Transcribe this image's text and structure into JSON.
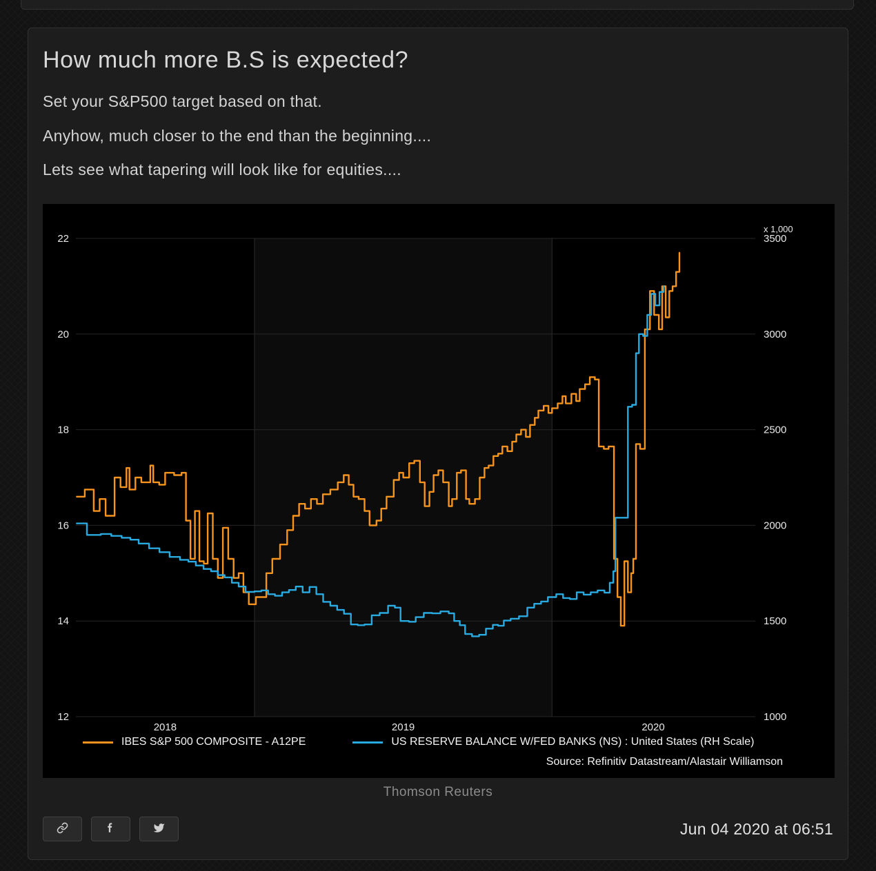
{
  "post": {
    "title": "How much more B.S is expected?",
    "paragraphs": [
      "Set your S&P500 target based on that.",
      "Anyhow, much closer to the end than the beginning....",
      "Lets see what tapering will look like for equities...."
    ],
    "caption": "Thomson Reuters",
    "timestamp": "Jun 04 2020 at 06:51"
  },
  "share": {
    "buttons": [
      {
        "name": "link"
      },
      {
        "name": "facebook"
      },
      {
        "name": "twitter"
      }
    ]
  },
  "chart_data": {
    "type": "line",
    "background": "#000000",
    "x_axis": {
      "range": [
        2018.4,
        2020.683
      ],
      "gridlines": [
        2019,
        2020
      ],
      "band": [
        2019,
        2020
      ],
      "labels": [
        {
          "text": "2018",
          "x": 2018.7
        },
        {
          "text": "2019",
          "x": 2019.5
        },
        {
          "text": "2020",
          "x": 2020.34
        }
      ]
    },
    "left_axis": {
      "range": [
        12,
        22
      ],
      "ticks": [
        22,
        20,
        18,
        16,
        14,
        12
      ]
    },
    "right_axis": {
      "range": [
        1000,
        3500
      ],
      "ticks": [
        3500,
        3000,
        2500,
        2000,
        1500,
        1000
      ],
      "unit_label": "x 1,000"
    },
    "legend": [
      {
        "label": "IBES S&P 500 COMPOSITE - A12PE",
        "color": "#f7941e"
      },
      {
        "label": "US RESERVE BALANCE W/FED BANKS (NS) : United States (RH Scale)",
        "color": "#29abe2"
      }
    ],
    "source": "Source: Refinitiv Datastream/Alastair Williamson",
    "series": [
      {
        "name": "IBES S&P 500 COMPOSITE - A12PE",
        "axis": "left",
        "color": "#f7941e",
        "step": true,
        "points": [
          [
            2018.403,
            16.6
          ],
          [
            2018.43,
            16.75
          ],
          [
            2018.46,
            16.3
          ],
          [
            2018.48,
            16.55
          ],
          [
            2018.5,
            16.2
          ],
          [
            2018.53,
            17.0
          ],
          [
            2018.55,
            16.8
          ],
          [
            2018.57,
            17.2
          ],
          [
            2018.58,
            16.75
          ],
          [
            2018.6,
            17.0
          ],
          [
            2018.62,
            16.9
          ],
          [
            2018.65,
            17.25
          ],
          [
            2018.66,
            16.9
          ],
          [
            2018.68,
            16.85
          ],
          [
            2018.7,
            17.1
          ],
          [
            2018.73,
            17.05
          ],
          [
            2018.755,
            17.1
          ],
          [
            2018.77,
            16.1
          ],
          [
            2018.785,
            15.3
          ],
          [
            2018.8,
            16.3
          ],
          [
            2018.815,
            15.25
          ],
          [
            2018.83,
            15.2
          ],
          [
            2018.843,
            16.25
          ],
          [
            2018.86,
            15.3
          ],
          [
            2018.877,
            14.9
          ],
          [
            2018.894,
            15.95
          ],
          [
            2018.912,
            15.3
          ],
          [
            2018.93,
            14.9
          ],
          [
            2018.947,
            15.0
          ],
          [
            2018.963,
            14.6
          ],
          [
            2018.981,
            14.35
          ],
          [
            2019.005,
            14.5
          ],
          [
            2019.04,
            15.0
          ],
          [
            2019.06,
            15.3
          ],
          [
            2019.086,
            15.6
          ],
          [
            2019.11,
            15.9
          ],
          [
            2019.13,
            16.2
          ],
          [
            2019.15,
            16.45
          ],
          [
            2019.17,
            16.35
          ],
          [
            2019.19,
            16.55
          ],
          [
            2019.21,
            16.45
          ],
          [
            2019.23,
            16.65
          ],
          [
            2019.255,
            16.75
          ],
          [
            2019.28,
            16.9
          ],
          [
            2019.3,
            17.05
          ],
          [
            2019.317,
            16.85
          ],
          [
            2019.333,
            16.6
          ],
          [
            2019.35,
            16.55
          ],
          [
            2019.37,
            16.3
          ],
          [
            2019.387,
            16.0
          ],
          [
            2019.41,
            16.1
          ],
          [
            2019.426,
            16.35
          ],
          [
            2019.444,
            16.6
          ],
          [
            2019.468,
            16.95
          ],
          [
            2019.486,
            17.1
          ],
          [
            2019.5,
            17.0
          ],
          [
            2019.52,
            17.3
          ],
          [
            2019.537,
            17.35
          ],
          [
            2019.556,
            16.9
          ],
          [
            2019.572,
            16.4
          ],
          [
            2019.588,
            16.7
          ],
          [
            2019.602,
            17.05
          ],
          [
            2019.618,
            17.15
          ],
          [
            2019.634,
            16.9
          ],
          [
            2019.653,
            16.4
          ],
          [
            2019.664,
            16.55
          ],
          [
            2019.68,
            17.1
          ],
          [
            2019.694,
            17.15
          ],
          [
            2019.711,
            16.55
          ],
          [
            2019.722,
            16.45
          ],
          [
            2019.741,
            16.55
          ],
          [
            2019.757,
            17.0
          ],
          [
            2019.773,
            17.2
          ],
          [
            2019.787,
            17.25
          ],
          [
            2019.803,
            17.45
          ],
          [
            2019.819,
            17.5
          ],
          [
            2019.833,
            17.65
          ],
          [
            2019.85,
            17.55
          ],
          [
            2019.866,
            17.75
          ],
          [
            2019.88,
            17.9
          ],
          [
            2019.896,
            18.0
          ],
          [
            2019.912,
            17.85
          ],
          [
            2019.926,
            18.1
          ],
          [
            2019.942,
            18.25
          ],
          [
            2019.954,
            18.4
          ],
          [
            2019.972,
            18.5
          ],
          [
            2019.988,
            18.35
          ],
          [
            2020.0,
            18.45
          ],
          [
            2020.019,
            18.55
          ],
          [
            2020.035,
            18.7
          ],
          [
            2020.046,
            18.55
          ],
          [
            2020.065,
            18.75
          ],
          [
            2020.081,
            18.6
          ],
          [
            2020.093,
            18.85
          ],
          [
            2020.111,
            18.95
          ],
          [
            2020.127,
            19.1
          ],
          [
            2020.144,
            19.05
          ],
          [
            2020.157,
            17.65
          ],
          [
            2020.174,
            17.6
          ],
          [
            2020.19,
            17.65
          ],
          [
            2020.208,
            15.3
          ],
          [
            2020.22,
            14.5
          ],
          [
            2020.231,
            13.9
          ],
          [
            2020.243,
            15.25
          ],
          [
            2020.255,
            14.6
          ],
          [
            2020.266,
            15.0
          ],
          [
            2020.273,
            15.3
          ],
          [
            2020.282,
            17.7
          ],
          [
            2020.296,
            17.6
          ],
          [
            2020.312,
            20.1
          ],
          [
            2020.329,
            20.9
          ],
          [
            2020.343,
            20.4
          ],
          [
            2020.359,
            20.1
          ],
          [
            2020.37,
            21.0
          ],
          [
            2020.382,
            20.35
          ],
          [
            2020.394,
            20.9
          ],
          [
            2020.405,
            21.0
          ],
          [
            2020.417,
            21.3
          ],
          [
            2020.428,
            21.7
          ]
        ]
      },
      {
        "name": "US RESERVE BALANCE W/FED BANKS (NS) : United States",
        "axis": "right",
        "color": "#29abe2",
        "step": true,
        "points": [
          [
            2018.403,
            2010
          ],
          [
            2018.437,
            1950
          ],
          [
            2018.484,
            1955
          ],
          [
            2018.519,
            1945
          ],
          [
            2018.554,
            1935
          ],
          [
            2018.583,
            1925
          ],
          [
            2018.611,
            1905
          ],
          [
            2018.646,
            1880
          ],
          [
            2018.681,
            1860
          ],
          [
            2018.715,
            1835
          ],
          [
            2018.75,
            1820
          ],
          [
            2018.778,
            1810
          ],
          [
            2018.803,
            1790
          ],
          [
            2018.829,
            1772
          ],
          [
            2018.854,
            1760
          ],
          [
            2018.877,
            1740
          ],
          [
            2018.9,
            1728
          ],
          [
            2018.924,
            1700
          ],
          [
            2018.947,
            1680
          ],
          [
            2018.97,
            1652
          ],
          [
            2019.0,
            1655
          ],
          [
            2019.023,
            1660
          ],
          [
            2019.046,
            1640
          ],
          [
            2019.069,
            1632
          ],
          [
            2019.093,
            1650
          ],
          [
            2019.116,
            1662
          ],
          [
            2019.139,
            1680
          ],
          [
            2019.162,
            1650
          ],
          [
            2019.185,
            1678
          ],
          [
            2019.208,
            1640
          ],
          [
            2019.231,
            1600
          ],
          [
            2019.255,
            1580
          ],
          [
            2019.278,
            1558
          ],
          [
            2019.301,
            1538
          ],
          [
            2019.324,
            1482
          ],
          [
            2019.347,
            1478
          ],
          [
            2019.37,
            1482
          ],
          [
            2019.394,
            1530
          ],
          [
            2019.421,
            1542
          ],
          [
            2019.449,
            1580
          ],
          [
            2019.472,
            1570
          ],
          [
            2019.491,
            1500
          ],
          [
            2019.519,
            1496
          ],
          [
            2019.542,
            1520
          ],
          [
            2019.569,
            1542
          ],
          [
            2019.597,
            1540
          ],
          [
            2019.625,
            1550
          ],
          [
            2019.653,
            1540
          ],
          [
            2019.671,
            1500
          ],
          [
            2019.69,
            1478
          ],
          [
            2019.708,
            1432
          ],
          [
            2019.731,
            1420
          ],
          [
            2019.755,
            1428
          ],
          [
            2019.778,
            1460
          ],
          [
            2019.801,
            1480
          ],
          [
            2019.819,
            1475
          ],
          [
            2019.838,
            1502
          ],
          [
            2019.861,
            1512
          ],
          [
            2019.889,
            1525
          ],
          [
            2019.917,
            1570
          ],
          [
            2019.94,
            1590
          ],
          [
            2019.963,
            1602
          ],
          [
            2019.986,
            1625
          ],
          [
            2020.014,
            1640
          ],
          [
            2020.037,
            1620
          ],
          [
            2020.06,
            1615
          ],
          [
            2020.083,
            1650
          ],
          [
            2020.106,
            1638
          ],
          [
            2020.13,
            1650
          ],
          [
            2020.153,
            1660
          ],
          [
            2020.176,
            1648
          ],
          [
            2020.194,
            1700
          ],
          [
            2020.206,
            1760
          ],
          [
            2020.213,
            2040
          ],
          [
            2020.245,
            2040
          ],
          [
            2020.255,
            2620
          ],
          [
            2020.269,
            2630
          ],
          [
            2020.282,
            2900
          ],
          [
            2020.292,
            3000
          ],
          [
            2020.306,
            2990
          ],
          [
            2020.32,
            3100
          ],
          [
            2020.333,
            3210
          ],
          [
            2020.347,
            3150
          ],
          [
            2020.361,
            3220
          ],
          [
            2020.375,
            3250
          ]
        ]
      }
    ]
  }
}
